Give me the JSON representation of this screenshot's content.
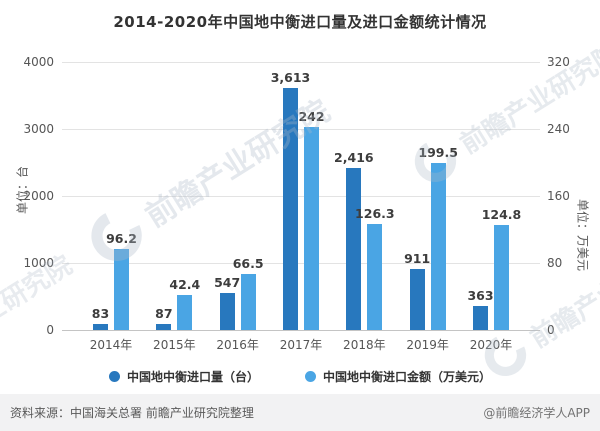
{
  "page": {
    "title": "2014-2020年中国地中衡进口量及进口金额统计情况"
  },
  "chart_data": {
    "type": "bar",
    "title": "2014-2020年中国地中衡进口量及进口金额统计情况",
    "categories": [
      "2014年",
      "2015年",
      "2016年",
      "2017年",
      "2018年",
      "2019年",
      "2020年"
    ],
    "series": [
      {
        "key": "volume",
        "name": "中国地中衡进口量（台）",
        "axis": "left",
        "color": "#2878BE",
        "values": [
          83,
          87,
          547,
          3613,
          2416,
          911,
          363
        ],
        "labels": [
          "83",
          "87",
          "547",
          "3,613",
          "2,416",
          "911",
          "363"
        ]
      },
      {
        "key": "amount",
        "name": "中国地中衡进口金额（万美元）",
        "axis": "right",
        "color": "#4AA5E4",
        "values": [
          96.2,
          42.4,
          66.5,
          242,
          126.3,
          199.5,
          124.8
        ],
        "labels": [
          "96.2",
          "42.4",
          "66.5",
          "242",
          "126.3",
          "199.5",
          "124.8"
        ]
      }
    ],
    "left_axis": {
      "name": "单位：台",
      "min": 0,
      "max": 4000,
      "ticks": [
        "4000",
        "3000",
        "2000",
        "1000",
        "0"
      ]
    },
    "right_axis": {
      "name": "单位：万美元",
      "min": 0,
      "max": 320,
      "ticks": [
        "320",
        "240",
        "160",
        "80",
        "0"
      ]
    },
    "grid": true,
    "legend_position": "bottom"
  },
  "footer": {
    "source": "资料来源：中国海关总署 前瞻产业研究院整理",
    "credit": "@前瞻经济学人APP"
  },
  "watermark": {
    "text": "前瞻产业研究院"
  }
}
